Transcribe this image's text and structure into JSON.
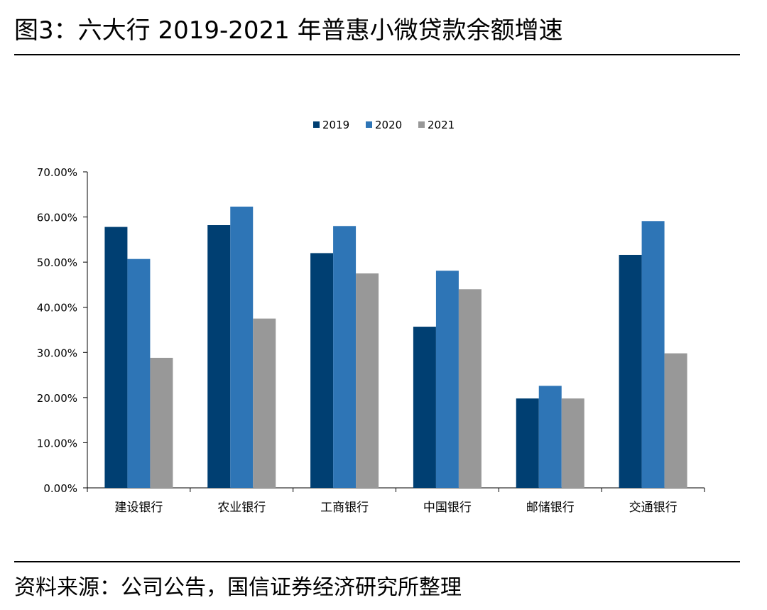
{
  "title": "图3：六大行 2019-2021 年普惠小微贷款余额增速",
  "source": "资料来源：公司公告，国信证券经济研究所整理",
  "chart_data": {
    "type": "bar",
    "categories": [
      "建设银行",
      "农业银行",
      "工商银行",
      "中国银行",
      "邮储银行",
      "交通银行"
    ],
    "series": [
      {
        "name": "2019",
        "color": "#003f72",
        "values": [
          57.8,
          58.2,
          52.0,
          35.7,
          19.8,
          51.6
        ]
      },
      {
        "name": "2020",
        "color": "#2e75b6",
        "values": [
          50.7,
          62.3,
          58.0,
          48.1,
          22.6,
          59.1
        ]
      },
      {
        "name": "2021",
        "color": "#989898",
        "values": [
          28.8,
          37.5,
          47.5,
          44.0,
          19.8,
          29.8
        ]
      }
    ],
    "y_ticks": [
      "0.00%",
      "10.00%",
      "20.00%",
      "30.00%",
      "40.00%",
      "50.00%",
      "60.00%",
      "70.00%"
    ],
    "ylim": [
      0,
      70
    ],
    "legend_position": "top-center",
    "grid": false
  }
}
